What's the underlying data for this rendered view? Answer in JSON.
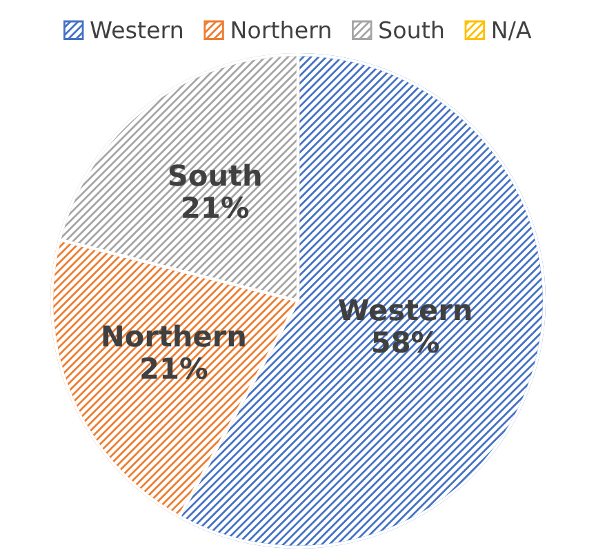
{
  "chart_data": {
    "type": "pie",
    "categories": [
      "Western",
      "Northern",
      "South",
      "N/A"
    ],
    "values": [
      58,
      21,
      21,
      0
    ],
    "value_labels": [
      "58%",
      "21%",
      "21%",
      null
    ],
    "colors": [
      "#4472c4",
      "#ed7d31",
      "#a5a5a5",
      "#ffc000"
    ],
    "legend": "top"
  }
}
